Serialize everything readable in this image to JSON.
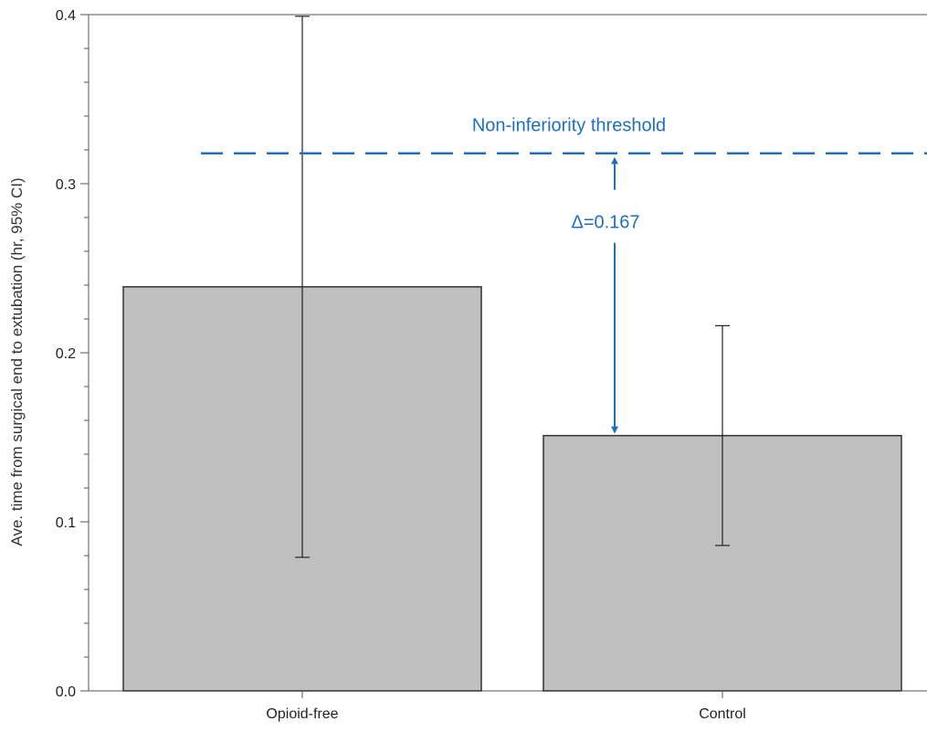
{
  "chart_data": {
    "type": "bar",
    "title": "",
    "xlabel": "",
    "ylabel": "Ave. time from surgical end to extubation (hr, 95% CI)",
    "ylim": [
      0,
      0.4
    ],
    "yticks": [
      "0.0",
      "0.1",
      "0.2",
      "0.3",
      "0.4"
    ],
    "categories": [
      "Opioid-free",
      "Control"
    ],
    "values": [
      0.239,
      0.151
    ],
    "ci_lower": [
      0.079,
      0.086
    ],
    "ci_upper": [
      0.399,
      0.216
    ],
    "bar_color": "#c0c0c0",
    "grid": false,
    "threshold": {
      "value": 0.318,
      "label": "Non-inferiority threshold",
      "color": "#1f6fbf",
      "style": "dashed"
    },
    "delta": {
      "label": "Δ=0.167",
      "from": 0.151,
      "to": 0.318,
      "color": "#1f6fbf"
    }
  }
}
